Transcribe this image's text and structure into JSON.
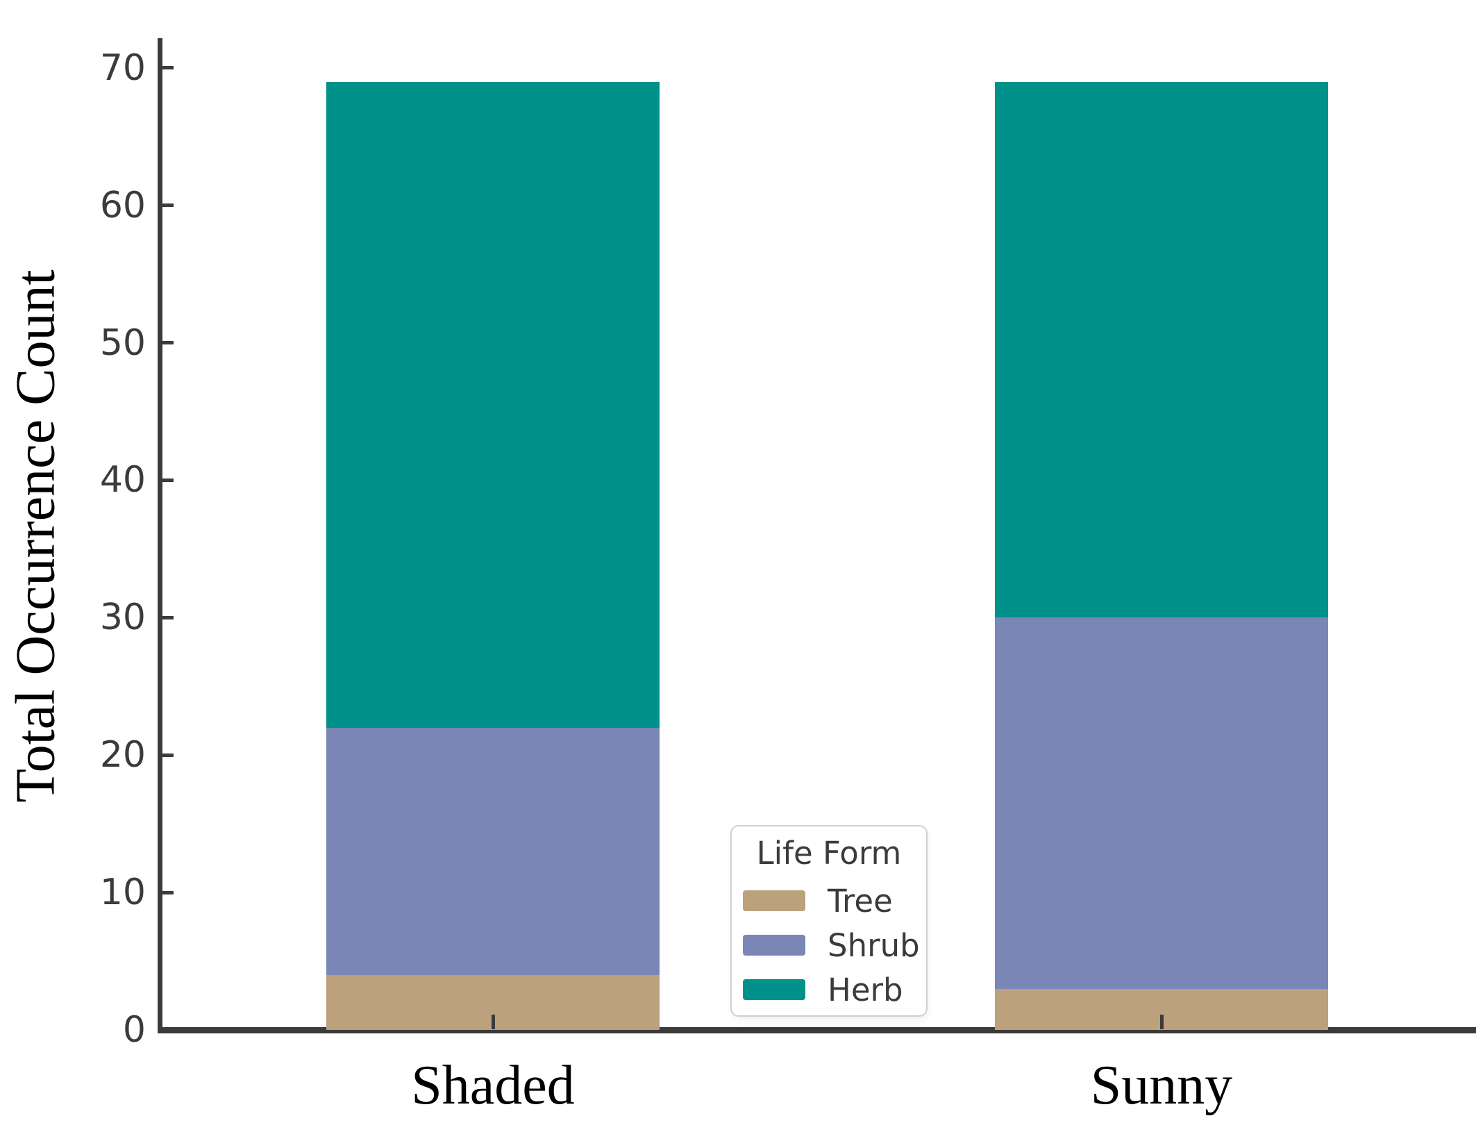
{
  "chart_data": {
    "type": "bar",
    "stacked": true,
    "title": "",
    "xlabel": "",
    "ylabel": "Total Occurrence Count",
    "categories": [
      "Shaded",
      "Sunny"
    ],
    "series": [
      {
        "name": "Tree",
        "color": "#bba17c",
        "values": [
          4,
          3
        ]
      },
      {
        "name": "Shrub",
        "color": "#7a86b6",
        "values": [
          18,
          27
        ]
      },
      {
        "name": "Herb",
        "color": "#00918a",
        "values": [
          47,
          39
        ]
      }
    ],
    "stack_boundaries": {
      "Shaded": [
        4,
        22,
        69
      ],
      "Sunny": [
        3,
        30,
        69
      ]
    },
    "totals": [
      69,
      69
    ],
    "yticks": [
      0,
      10,
      20,
      30,
      40,
      50,
      60,
      70
    ],
    "ylim": [
      0,
      72
    ],
    "grid": false,
    "axis_color": "#3b3b3b",
    "legend": {
      "title": "Life Form",
      "position": "center-bottom"
    }
  }
}
